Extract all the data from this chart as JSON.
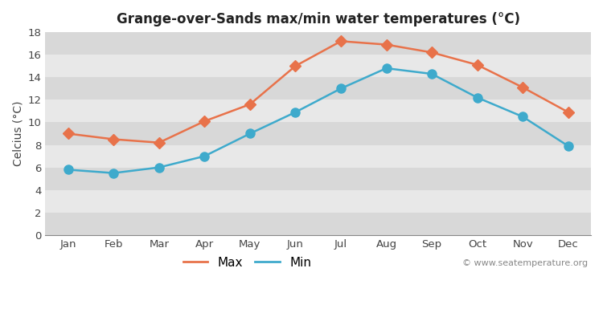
{
  "title": "Grange-over-Sands max/min water temperatures (°C)",
  "ylabel": "Celcius (°C)",
  "months": [
    "Jan",
    "Feb",
    "Mar",
    "Apr",
    "May",
    "Jun",
    "Jul",
    "Aug",
    "Sep",
    "Oct",
    "Nov",
    "Dec"
  ],
  "max_values": [
    9.0,
    8.5,
    8.2,
    10.1,
    11.6,
    15.0,
    17.2,
    16.9,
    16.2,
    15.1,
    13.1,
    10.9
  ],
  "min_values": [
    5.8,
    5.5,
    6.0,
    7.0,
    9.0,
    10.9,
    13.0,
    14.8,
    14.3,
    12.2,
    10.5,
    7.9
  ],
  "max_color": "#e8724a",
  "min_color": "#3eaacc",
  "max_label": "Max",
  "min_label": "Min",
  "ylim": [
    0,
    18
  ],
  "yticks": [
    0,
    2,
    4,
    6,
    8,
    10,
    12,
    14,
    16,
    18
  ],
  "figure_bg": "#ffffff",
  "band_colors": [
    "#d8d8d8",
    "#e8e8e8"
  ],
  "watermark": "© www.seatemperature.org",
  "title_fontsize": 12,
  "label_fontsize": 10,
  "tick_fontsize": 9.5,
  "marker_size_max": 7,
  "marker_size_min": 8,
  "line_width": 1.8
}
